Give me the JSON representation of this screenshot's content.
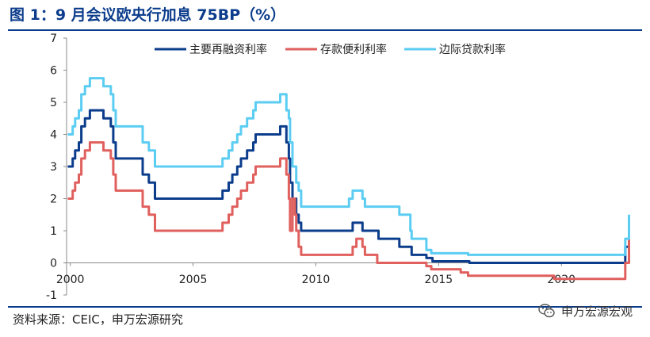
{
  "header": {
    "title": "图 1：9 月会议欧央行加息 75BP（%）"
  },
  "footer": {
    "source": "资料来源：CEIC，申万宏源研究",
    "watermark": "申万宏源宏观",
    "watermark_icon": "wechat-icon"
  },
  "colors": {
    "main_refi": "#0c3d8c",
    "deposit": "#e0605e",
    "marginal_lending": "#5ccdf2",
    "accent": "#0c3d8c"
  },
  "chart_data": {
    "type": "line",
    "title": "",
    "xlabel": "",
    "ylabel": "",
    "xlim": [
      1999.85,
      2022.8
    ],
    "ylim": [
      -1,
      7
    ],
    "x_ticks": [
      "2000",
      "2005",
      "2010",
      "2015",
      "2020"
    ],
    "y_ticks": [
      "-1",
      "0",
      "1",
      "2",
      "3",
      "4",
      "5",
      "6",
      "7"
    ],
    "grid": false,
    "legend_position": "top",
    "series": [
      {
        "name": "主要再融资利率",
        "key": "main_refi",
        "points": [
          [
            1999.9,
            3.0
          ],
          [
            2000.1,
            3.25
          ],
          [
            2000.2,
            3.5
          ],
          [
            2000.35,
            3.75
          ],
          [
            2000.45,
            4.25
          ],
          [
            2000.6,
            4.5
          ],
          [
            2000.8,
            4.75
          ],
          [
            2001.35,
            4.5
          ],
          [
            2001.65,
            4.25
          ],
          [
            2001.75,
            3.75
          ],
          [
            2001.85,
            3.25
          ],
          [
            2002.9,
            3.25
          ],
          [
            2002.95,
            2.75
          ],
          [
            2003.2,
            2.5
          ],
          [
            2003.45,
            2.0
          ],
          [
            2005.9,
            2.0
          ],
          [
            2006.2,
            2.25
          ],
          [
            2006.45,
            2.5
          ],
          [
            2006.6,
            2.75
          ],
          [
            2006.8,
            3.0
          ],
          [
            2006.95,
            3.25
          ],
          [
            2007.2,
            3.5
          ],
          [
            2007.45,
            3.75
          ],
          [
            2007.55,
            4.0
          ],
          [
            2008.5,
            4.0
          ],
          [
            2008.55,
            4.25
          ],
          [
            2008.75,
            4.25
          ],
          [
            2008.8,
            3.75
          ],
          [
            2008.9,
            3.25
          ],
          [
            2008.95,
            2.5
          ],
          [
            2009.05,
            2.0
          ],
          [
            2009.2,
            1.5
          ],
          [
            2009.3,
            1.25
          ],
          [
            2009.4,
            1.0
          ],
          [
            2011.25,
            1.0
          ],
          [
            2011.5,
            1.25
          ],
          [
            2011.85,
            1.25
          ],
          [
            2011.9,
            1.0
          ],
          [
            2012.5,
            1.0
          ],
          [
            2012.55,
            0.75
          ],
          [
            2013.35,
            0.75
          ],
          [
            2013.4,
            0.5
          ],
          [
            2013.85,
            0.5
          ],
          [
            2013.9,
            0.25
          ],
          [
            2014.45,
            0.25
          ],
          [
            2014.5,
            0.15
          ],
          [
            2014.7,
            0.15
          ],
          [
            2014.75,
            0.05
          ],
          [
            2016.2,
            0.05
          ],
          [
            2016.25,
            0.0
          ],
          [
            2022.5,
            0.0
          ],
          [
            2022.6,
            0.5
          ],
          [
            2022.75,
            1.25
          ]
        ]
      },
      {
        "name": "存款便利利率",
        "key": "deposit",
        "points": [
          [
            1999.9,
            2.0
          ],
          [
            2000.1,
            2.25
          ],
          [
            2000.2,
            2.5
          ],
          [
            2000.35,
            2.75
          ],
          [
            2000.45,
            3.25
          ],
          [
            2000.6,
            3.5
          ],
          [
            2000.8,
            3.75
          ],
          [
            2001.35,
            3.5
          ],
          [
            2001.65,
            3.25
          ],
          [
            2001.75,
            2.75
          ],
          [
            2001.85,
            2.25
          ],
          [
            2002.9,
            2.25
          ],
          [
            2002.95,
            1.75
          ],
          [
            2003.2,
            1.5
          ],
          [
            2003.45,
            1.0
          ],
          [
            2005.9,
            1.0
          ],
          [
            2006.2,
            1.25
          ],
          [
            2006.45,
            1.5
          ],
          [
            2006.6,
            1.75
          ],
          [
            2006.8,
            2.0
          ],
          [
            2006.95,
            2.25
          ],
          [
            2007.2,
            2.5
          ],
          [
            2007.45,
            2.75
          ],
          [
            2007.55,
            3.0
          ],
          [
            2008.5,
            3.0
          ],
          [
            2008.55,
            3.25
          ],
          [
            2008.75,
            3.25
          ],
          [
            2008.8,
            2.75
          ],
          [
            2008.9,
            2.0
          ],
          [
            2008.95,
            1.0
          ],
          [
            2009.05,
            2.0
          ],
          [
            2009.15,
            1.5
          ],
          [
            2009.2,
            1.0
          ],
          [
            2009.3,
            0.5
          ],
          [
            2009.4,
            0.25
          ],
          [
            2011.25,
            0.25
          ],
          [
            2011.5,
            0.5
          ],
          [
            2011.65,
            0.75
          ],
          [
            2011.85,
            0.75
          ],
          [
            2011.9,
            0.5
          ],
          [
            2012.0,
            0.25
          ],
          [
            2012.5,
            0.0
          ],
          [
            2014.45,
            0.0
          ],
          [
            2014.5,
            -0.1
          ],
          [
            2014.7,
            -0.2
          ],
          [
            2015.9,
            -0.3
          ],
          [
            2016.2,
            -0.4
          ],
          [
            2019.7,
            -0.5
          ],
          [
            2022.5,
            -0.5
          ],
          [
            2022.6,
            0.0
          ],
          [
            2022.75,
            0.75
          ]
        ]
      },
      {
        "name": "边际贷款利率",
        "key": "marginal_lending",
        "points": [
          [
            1999.9,
            4.0
          ],
          [
            2000.1,
            4.25
          ],
          [
            2000.2,
            4.5
          ],
          [
            2000.35,
            4.75
          ],
          [
            2000.45,
            5.25
          ],
          [
            2000.6,
            5.5
          ],
          [
            2000.8,
            5.75
          ],
          [
            2001.35,
            5.5
          ],
          [
            2001.65,
            5.25
          ],
          [
            2001.75,
            4.75
          ],
          [
            2001.85,
            4.25
          ],
          [
            2002.9,
            4.25
          ],
          [
            2002.95,
            3.75
          ],
          [
            2003.2,
            3.5
          ],
          [
            2003.45,
            3.0
          ],
          [
            2005.9,
            3.0
          ],
          [
            2006.2,
            3.25
          ],
          [
            2006.45,
            3.5
          ],
          [
            2006.6,
            3.75
          ],
          [
            2006.8,
            4.0
          ],
          [
            2006.95,
            4.25
          ],
          [
            2007.2,
            4.5
          ],
          [
            2007.45,
            4.75
          ],
          [
            2007.55,
            5.0
          ],
          [
            2008.5,
            5.0
          ],
          [
            2008.55,
            5.25
          ],
          [
            2008.75,
            5.25
          ],
          [
            2008.8,
            4.75
          ],
          [
            2008.9,
            4.5
          ],
          [
            2008.95,
            3.75
          ],
          [
            2009.05,
            3.0
          ],
          [
            2009.2,
            2.5
          ],
          [
            2009.3,
            2.25
          ],
          [
            2009.4,
            1.75
          ],
          [
            2011.25,
            1.75
          ],
          [
            2011.35,
            2.0
          ],
          [
            2011.5,
            2.25
          ],
          [
            2011.85,
            2.25
          ],
          [
            2011.9,
            2.0
          ],
          [
            2012.0,
            1.75
          ],
          [
            2013.35,
            1.75
          ],
          [
            2013.4,
            1.5
          ],
          [
            2013.85,
            1.0
          ],
          [
            2013.9,
            0.75
          ],
          [
            2014.45,
            0.75
          ],
          [
            2014.5,
            0.4
          ],
          [
            2014.7,
            0.3
          ],
          [
            2016.2,
            0.25
          ],
          [
            2022.5,
            0.25
          ],
          [
            2022.6,
            0.75
          ],
          [
            2022.75,
            1.5
          ]
        ]
      }
    ]
  }
}
